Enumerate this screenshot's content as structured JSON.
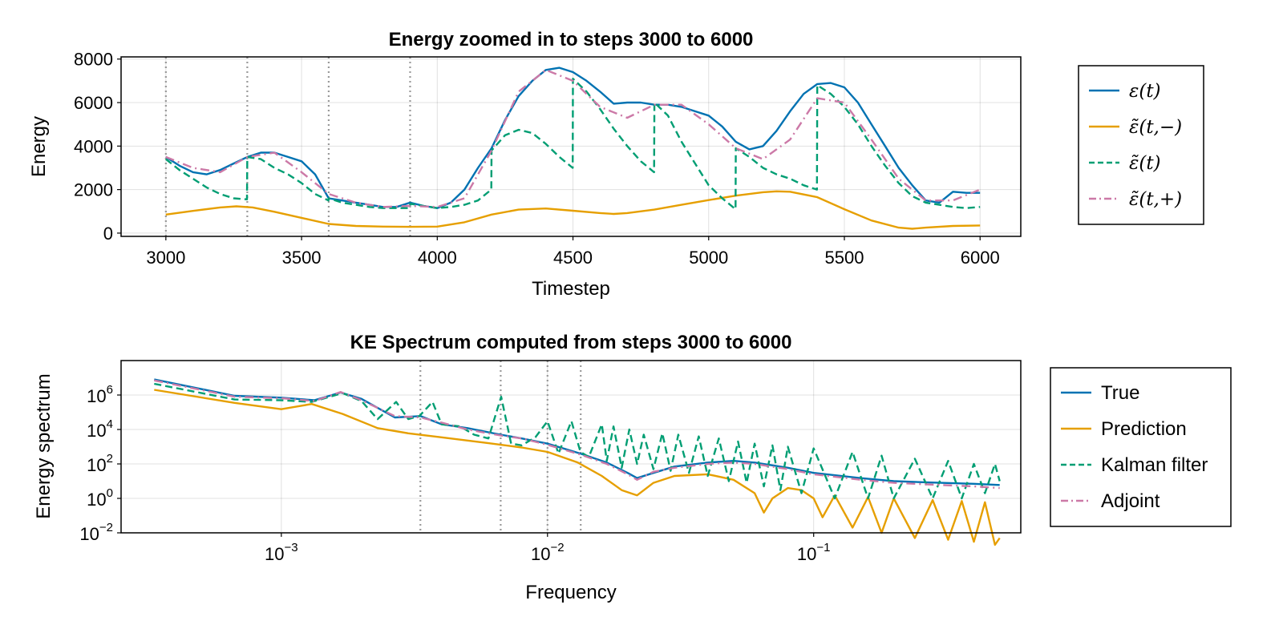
{
  "colors": {
    "true": "#0072b2",
    "prediction": "#e69f00",
    "kalman": "#009e73",
    "adjoint": "#cc79a7"
  },
  "chart_data": [
    {
      "type": "line",
      "title": "Energy zoomed in to steps 3000 to 6000",
      "xlabel": "Timestep",
      "ylabel": "Energy",
      "xlim": [
        2835,
        6150
      ],
      "ylim": [
        -150,
        8100
      ],
      "xticks": [
        3000,
        3500,
        4000,
        4500,
        5000,
        5500,
        6000
      ],
      "yticks": [
        0,
        2000,
        4000,
        6000,
        8000
      ],
      "grid": true,
      "legend_position": "right",
      "vertical_markers": [
        3000,
        3300,
        3600,
        3900
      ],
      "series": [
        {
          "name": "ε(t)",
          "legend_label": "ε(t)",
          "color_key": "true",
          "style": "solid",
          "x": [
            3000,
            3050,
            3100,
            3150,
            3200,
            3250,
            3300,
            3350,
            3400,
            3450,
            3500,
            3550,
            3600,
            3650,
            3700,
            3750,
            3800,
            3850,
            3900,
            3950,
            4000,
            4050,
            4100,
            4150,
            4200,
            4250,
            4300,
            4350,
            4400,
            4450,
            4500,
            4550,
            4600,
            4650,
            4700,
            4750,
            4800,
            4850,
            4900,
            4950,
            5000,
            5050,
            5100,
            5150,
            5200,
            5250,
            5300,
            5350,
            5400,
            5450,
            5500,
            5550,
            5600,
            5650,
            5700,
            5750,
            5800,
            5850,
            5900,
            5950,
            6000
          ],
          "y": [
            3500,
            3100,
            2800,
            2700,
            2900,
            3200,
            3500,
            3700,
            3700,
            3500,
            3300,
            2700,
            1600,
            1500,
            1400,
            1300,
            1200,
            1200,
            1400,
            1250,
            1150,
            1400,
            2000,
            3000,
            3900,
            5200,
            6300,
            7000,
            7500,
            7600,
            7400,
            7000,
            6500,
            5950,
            6000,
            6000,
            5900,
            5900,
            5800,
            5600,
            5400,
            4900,
            4200,
            3850,
            4000,
            4700,
            5600,
            6400,
            6850,
            6900,
            6700,
            6000,
            5000,
            4000,
            3000,
            2200,
            1500,
            1400,
            1900,
            1850,
            1850
          ]
        },
        {
          "name": "ε̃(t,−)",
          "legend_label": "ε̃(t,−)",
          "color_key": "prediction",
          "style": "solid",
          "x": [
            3000,
            3100,
            3200,
            3260,
            3320,
            3400,
            3500,
            3600,
            3700,
            3800,
            3900,
            4000,
            4100,
            4200,
            4300,
            4400,
            4500,
            4600,
            4650,
            4700,
            4800,
            4900,
            5000,
            5100,
            5200,
            5250,
            5300,
            5400,
            5500,
            5600,
            5700,
            5750,
            5800,
            5900,
            6000
          ],
          "y": [
            850,
            1020,
            1180,
            1230,
            1180,
            980,
            700,
            420,
            330,
            300,
            290,
            300,
            500,
            850,
            1080,
            1130,
            1030,
            920,
            880,
            920,
            1080,
            1300,
            1520,
            1720,
            1880,
            1920,
            1900,
            1650,
            1100,
            580,
            250,
            200,
            250,
            330,
            350
          ]
        },
        {
          "name": "ε̃(t)",
          "legend_label": "ε̃(t)",
          "color_key": "kalman",
          "style": "dashed",
          "x": [
            3000,
            3050,
            3100,
            3150,
            3200,
            3250,
            3299,
            3300,
            3350,
            3400,
            3450,
            3500,
            3550,
            3599,
            3600,
            3650,
            3700,
            3750,
            3800,
            3850,
            3899,
            3900,
            3950,
            4000,
            4050,
            4100,
            4150,
            4199,
            4200,
            4250,
            4300,
            4350,
            4400,
            4450,
            4499,
            4500,
            4550,
            4600,
            4650,
            4700,
            4750,
            4799,
            4800,
            4850,
            4900,
            4950,
            5000,
            5050,
            5099,
            5100,
            5150,
            5200,
            5250,
            5300,
            5350,
            5399,
            5400,
            5450,
            5500,
            5550,
            5600,
            5650,
            5700,
            5750,
            5800,
            5850,
            5900,
            5950,
            6000
          ],
          "y": [
            3400,
            2900,
            2500,
            2100,
            1800,
            1600,
            1550,
            3500,
            3400,
            3000,
            2700,
            2300,
            1800,
            1500,
            1600,
            1400,
            1300,
            1200,
            1150,
            1150,
            1150,
            1350,
            1250,
            1150,
            1200,
            1300,
            1500,
            2000,
            3800,
            4500,
            4750,
            4600,
            4100,
            3500,
            3000,
            7100,
            6500,
            5700,
            4800,
            4000,
            3300,
            2800,
            6000,
            5400,
            4200,
            3200,
            2200,
            1600,
            1100,
            3900,
            3500,
            3000,
            2700,
            2500,
            2200,
            2000,
            6800,
            6400,
            5800,
            5000,
            4000,
            3100,
            2300,
            1700,
            1400,
            1300,
            1200,
            1150,
            1200
          ]
        },
        {
          "name": "ε̃(t,+)",
          "legend_label": "ε̃(t,+)",
          "color_key": "adjoint",
          "style": "dashdot",
          "x": [
            3000,
            3100,
            3200,
            3300,
            3400,
            3500,
            3600,
            3700,
            3800,
            3900,
            4000,
            4100,
            4200,
            4300,
            4400,
            4500,
            4600,
            4700,
            4800,
            4900,
            5000,
            5100,
            5200,
            5300,
            5400,
            5500,
            5600,
            5700,
            5800,
            5900,
            6000
          ],
          "y": [
            3500,
            3000,
            2800,
            3500,
            3700,
            2800,
            1800,
            1400,
            1200,
            1250,
            1200,
            1600,
            3800,
            6500,
            7500,
            7000,
            5800,
            5300,
            5900,
            5900,
            5000,
            3900,
            3400,
            4300,
            6200,
            6000,
            4300,
            2500,
            1500,
            1500,
            2000
          ]
        }
      ]
    },
    {
      "type": "line",
      "title": "KE Spectrum computed from steps 3000 to 6000",
      "xlabel": "Frequency",
      "ylabel": "Energy spectrum",
      "xscale": "log",
      "yscale": "log",
      "xlim": [
        0.00025,
        0.6
      ],
      "ylim": [
        0.01,
        100000000
      ],
      "xticks": [
        0.001,
        0.01,
        0.1
      ],
      "xtick_labels": [
        {
          "base": "10",
          "exp": "−3"
        },
        {
          "base": "10",
          "exp": "−2"
        },
        {
          "base": "10",
          "exp": "−1"
        }
      ],
      "yticks": [
        0.01,
        1,
        100,
        10000,
        1000000
      ],
      "ytick_labels": [
        {
          "base": "10",
          "exp": "−2"
        },
        {
          "base": "10",
          "exp": "0"
        },
        {
          "base": "10",
          "exp": "2"
        },
        {
          "base": "10",
          "exp": "4"
        },
        {
          "base": "10",
          "exp": "6"
        }
      ],
      "grid": true,
      "legend_position": "right",
      "vertical_markers": [
        0.00333,
        0.00667,
        0.01,
        0.01333
      ],
      "series": [
        {
          "name": "True",
          "color_key": "true",
          "style": "solid",
          "x": [
            0.000333,
            0.000667,
            0.001,
            0.00133,
            0.00167,
            0.002,
            0.00267,
            0.00333,
            0.004,
            0.005,
            0.00667,
            0.008,
            0.01,
            0.0133,
            0.0167,
            0.02,
            0.0217,
            0.025,
            0.03,
            0.04,
            0.05,
            0.06,
            0.08,
            0.1,
            0.15,
            0.2,
            0.3,
            0.4,
            0.5
          ],
          "y": [
            8000000,
            900000,
            700000,
            500000,
            1400000,
            600000,
            50000,
            60000,
            20000,
            12000,
            5000,
            3000,
            1500,
            400,
            120,
            30,
            15,
            30,
            70,
            120,
            150,
            120,
            60,
            30,
            15,
            10,
            8,
            7,
            6
          ]
        },
        {
          "name": "Prediction",
          "color_key": "prediction",
          "style": "solid",
          "x": [
            0.000333,
            0.000667,
            0.001,
            0.0013,
            0.0017,
            0.0023,
            0.003,
            0.004,
            0.006,
            0.008,
            0.01,
            0.013,
            0.016,
            0.019,
            0.0217,
            0.025,
            0.03,
            0.04,
            0.05,
            0.06,
            0.065,
            0.07,
            0.08,
            0.09,
            0.1,
            0.108,
            0.12,
            0.14,
            0.16,
            0.18,
            0.2,
            0.24,
            0.28,
            0.32,
            0.36,
            0.4,
            0.44,
            0.48,
            0.5
          ],
          "y": [
            2000000,
            350000,
            150000,
            300000,
            80000,
            12000,
            6000,
            3500,
            1600,
            900,
            500,
            120,
            20,
            3,
            1.5,
            8,
            20,
            25,
            12,
            2,
            0.15,
            1,
            4,
            3,
            1,
            0.08,
            1.5,
            0.02,
            1.2,
            0.01,
            1,
            0.005,
            0.8,
            0.004,
            0.7,
            0.003,
            0.6,
            0.002,
            0.005
          ]
        },
        {
          "name": "Kalman filter",
          "color_key": "kalman",
          "style": "dashed",
          "x": [
            0.000333,
            0.000667,
            0.001,
            0.0013,
            0.0017,
            0.002,
            0.0023,
            0.0027,
            0.003,
            0.0033,
            0.0037,
            0.004,
            0.0047,
            0.0053,
            0.006,
            0.0067,
            0.0073,
            0.008,
            0.009,
            0.01,
            0.011,
            0.0123,
            0.0133,
            0.0143,
            0.016,
            0.0167,
            0.0177,
            0.019,
            0.0203,
            0.0217,
            0.023,
            0.025,
            0.027,
            0.029,
            0.031,
            0.034,
            0.037,
            0.04,
            0.044,
            0.048,
            0.052,
            0.056,
            0.06,
            0.065,
            0.07,
            0.075,
            0.08,
            0.09,
            0.1,
            0.12,
            0.14,
            0.16,
            0.18,
            0.2,
            0.24,
            0.28,
            0.32,
            0.36,
            0.4,
            0.44,
            0.48,
            0.5
          ],
          "y": [
            4500000,
            550000,
            500000,
            400000,
            1300000,
            450000,
            40000,
            400000,
            40000,
            60000,
            400000,
            20000,
            15000,
            5000,
            3000,
            800000,
            1500,
            1200,
            3500,
            30000,
            400,
            30000,
            500,
            250,
            20000,
            150,
            15000,
            60,
            10000,
            100,
            5000,
            50,
            6000,
            40,
            5000,
            30,
            4000,
            20,
            3000,
            10,
            2000,
            8,
            1500,
            5,
            1200,
            3,
            1000,
            2,
            800,
            1,
            500,
            1,
            300,
            1,
            200,
            1,
            150,
            1,
            100,
            2,
            100,
            10
          ]
        },
        {
          "name": "Adjoint",
          "color_key": "adjoint",
          "style": "dashdot",
          "x": [
            0.000333,
            0.000667,
            0.001,
            0.00133,
            0.00167,
            0.002,
            0.00267,
            0.00333,
            0.004,
            0.005,
            0.00667,
            0.008,
            0.01,
            0.0133,
            0.0167,
            0.02,
            0.0217,
            0.025,
            0.03,
            0.04,
            0.05,
            0.06,
            0.08,
            0.1,
            0.15,
            0.2,
            0.3,
            0.4,
            0.5
          ],
          "y": [
            7000000,
            800000,
            650000,
            450000,
            1500000,
            500000,
            60000,
            50000,
            25000,
            10000,
            4500,
            3000,
            1300,
            350,
            100,
            25,
            12,
            35,
            60,
            100,
            120,
            100,
            50,
            25,
            12,
            8,
            6,
            5,
            4
          ]
        }
      ]
    }
  ]
}
